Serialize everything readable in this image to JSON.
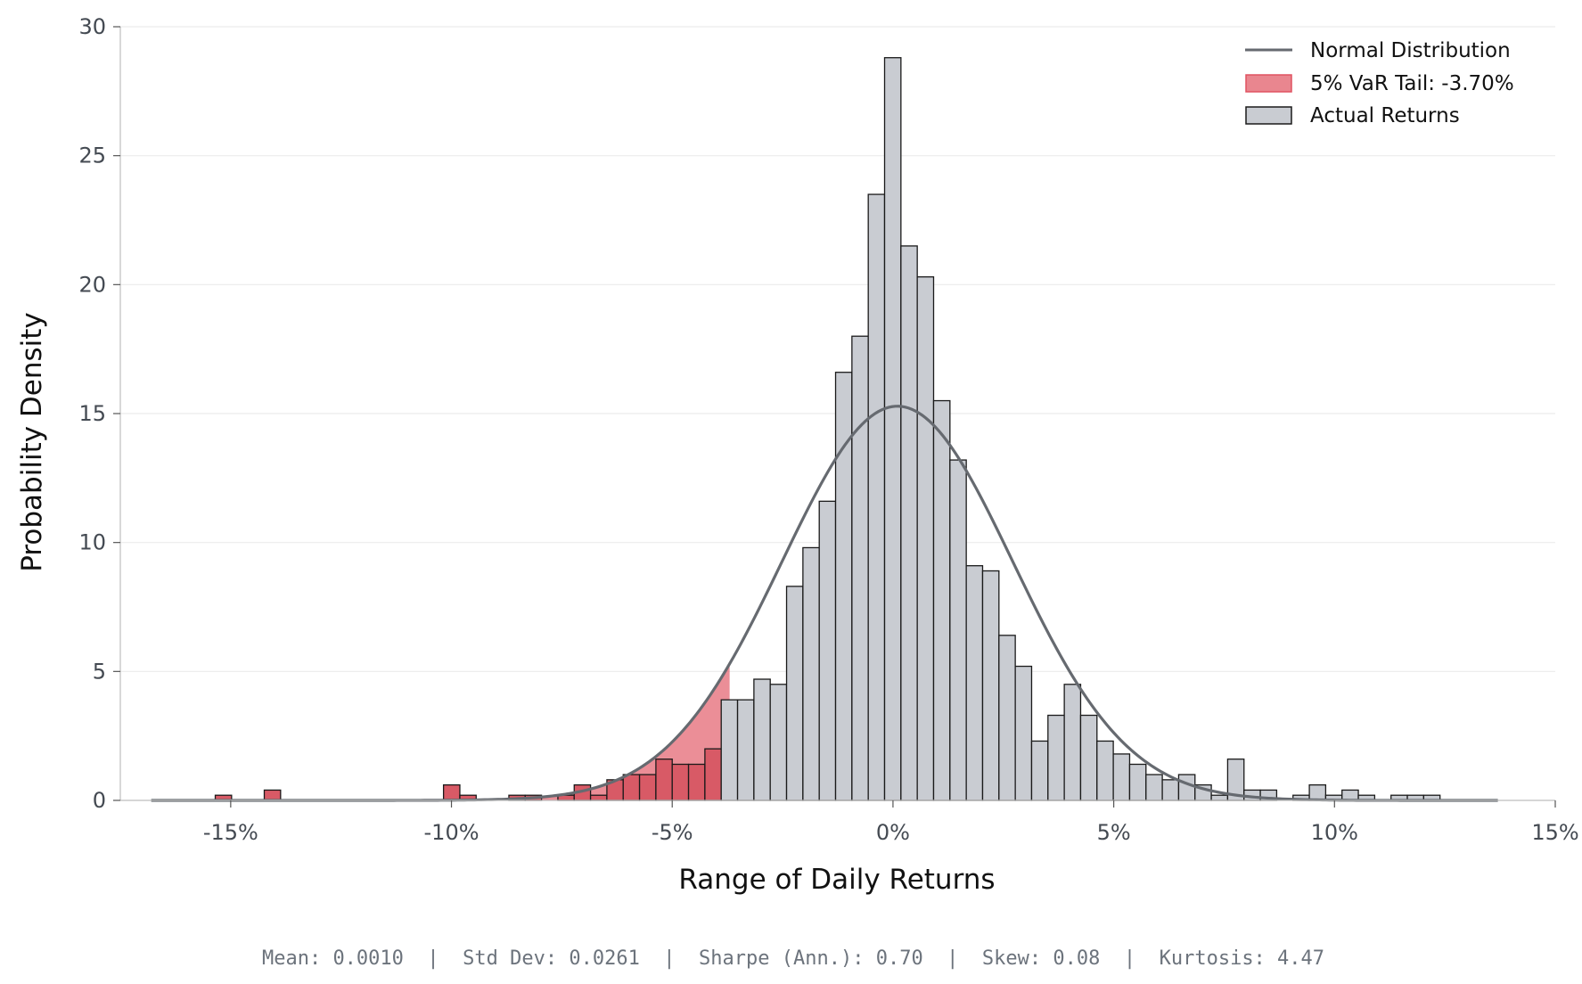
{
  "chart_data": {
    "type": "histogram",
    "title": "",
    "xlabel": "Range of Daily Returns",
    "ylabel": "Probability Density",
    "xlim": [
      -0.175,
      0.15
    ],
    "ylim": [
      0,
      30
    ],
    "xticks": [
      -0.15,
      -0.1,
      -0.05,
      0.0,
      0.05,
      0.1,
      0.15
    ],
    "xtick_labels": [
      "-15%",
      "-10%",
      "-5%",
      "0%",
      "5%",
      "10%",
      "15%"
    ],
    "yticks": [
      0,
      5,
      10,
      15,
      20,
      25,
      30
    ],
    "ytick_labels": [
      "0",
      "5",
      "10",
      "15",
      "20",
      "25",
      "30"
    ],
    "grid": "horizontal",
    "legend_position": "top-right",
    "bin_width": 0.0037,
    "var_threshold": -0.037,
    "series": [
      {
        "name": "Actual Returns",
        "kind": "histogram",
        "color": "#c9ccd2",
        "edge_color": "#1a1a1a",
        "bins": [
          {
            "x0": -0.1535,
            "density": 0.2
          },
          {
            "x0": -0.1424,
            "density": 0.4
          },
          {
            "x0": -0.1018,
            "density": 0.6
          },
          {
            "x0": -0.0981,
            "density": 0.2
          },
          {
            "x0": -0.087,
            "density": 0.2
          },
          {
            "x0": -0.0833,
            "density": 0.2
          },
          {
            "x0": -0.0759,
            "density": 0.2
          },
          {
            "x0": -0.0722,
            "density": 0.6
          },
          {
            "x0": -0.0685,
            "density": 0.2
          },
          {
            "x0": -0.0648,
            "density": 0.8
          },
          {
            "x0": -0.0611,
            "density": 1.0
          },
          {
            "x0": -0.0574,
            "density": 1.0
          },
          {
            "x0": -0.0537,
            "density": 1.6
          },
          {
            "x0": -0.05,
            "density": 1.4
          },
          {
            "x0": -0.0463,
            "density": 1.4
          },
          {
            "x0": -0.0426,
            "density": 2.0
          },
          {
            "x0": -0.0389,
            "density": 3.9
          },
          {
            "x0": -0.0352,
            "density": 3.9
          },
          {
            "x0": -0.0315,
            "density": 4.7
          },
          {
            "x0": -0.0278,
            "density": 4.5
          },
          {
            "x0": -0.0241,
            "density": 8.3
          },
          {
            "x0": -0.0204,
            "density": 9.8
          },
          {
            "x0": -0.0167,
            "density": 11.6
          },
          {
            "x0": -0.013,
            "density": 16.6
          },
          {
            "x0": -0.0093,
            "density": 18.0
          },
          {
            "x0": -0.0056,
            "density": 23.5
          },
          {
            "x0": -0.0019,
            "density": 28.8
          },
          {
            "x0": 0.0018,
            "density": 21.5
          },
          {
            "x0": 0.0055,
            "density": 20.3
          },
          {
            "x0": 0.0092,
            "density": 15.5
          },
          {
            "x0": 0.0129,
            "density": 13.2
          },
          {
            "x0": 0.0166,
            "density": 9.1
          },
          {
            "x0": 0.0203,
            "density": 8.9
          },
          {
            "x0": 0.024,
            "density": 6.4
          },
          {
            "x0": 0.0277,
            "density": 5.2
          },
          {
            "x0": 0.0314,
            "density": 2.3
          },
          {
            "x0": 0.0351,
            "density": 3.3
          },
          {
            "x0": 0.0388,
            "density": 4.5
          },
          {
            "x0": 0.0425,
            "density": 3.3
          },
          {
            "x0": 0.0462,
            "density": 2.3
          },
          {
            "x0": 0.0499,
            "density": 1.8
          },
          {
            "x0": 0.0536,
            "density": 1.4
          },
          {
            "x0": 0.0573,
            "density": 1.0
          },
          {
            "x0": 0.061,
            "density": 0.8
          },
          {
            "x0": 0.0647,
            "density": 1.0
          },
          {
            "x0": 0.0684,
            "density": 0.6
          },
          {
            "x0": 0.0721,
            "density": 0.2
          },
          {
            "x0": 0.0758,
            "density": 1.6
          },
          {
            "x0": 0.0795,
            "density": 0.4
          },
          {
            "x0": 0.0832,
            "density": 0.4
          },
          {
            "x0": 0.0906,
            "density": 0.2
          },
          {
            "x0": 0.0943,
            "density": 0.6
          },
          {
            "x0": 0.098,
            "density": 0.2
          },
          {
            "x0": 0.1017,
            "density": 0.4
          },
          {
            "x0": 0.1054,
            "density": 0.2
          },
          {
            "x0": 0.1128,
            "density": 0.2
          },
          {
            "x0": 0.1165,
            "density": 0.2
          },
          {
            "x0": 0.1202,
            "density": 0.2
          }
        ]
      },
      {
        "name": "Normal Distribution",
        "kind": "line",
        "color": "#666a70",
        "mean": 0.001,
        "std": 0.0261,
        "x_range": [
          -0.168,
          0.137
        ]
      },
      {
        "name": "5% VaR Tail: -3.70%",
        "kind": "area",
        "color": "#e05260",
        "threshold": -0.037
      }
    ],
    "legend": [
      {
        "label": "Normal Distribution",
        "kind": "line"
      },
      {
        "label": "5% VaR Tail: -3.70%",
        "kind": "patch-red"
      },
      {
        "label": "Actual Returns",
        "kind": "patch-gray"
      }
    ],
    "annotation": "Mean: 0.0010  |  Std Dev: 0.0261  |  Sharpe (Ann.): 0.70  |  Skew: 0.08  |  Kurtosis: 4.47"
  }
}
